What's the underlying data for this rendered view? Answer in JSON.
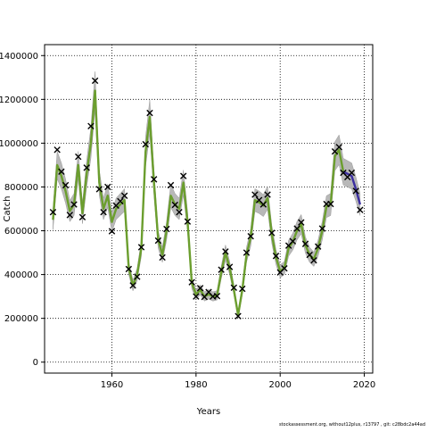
{
  "chart_data": {
    "type": "line",
    "title": "",
    "xlabel": "Years",
    "ylabel": "Catch",
    "xlim": [
      1944,
      2022
    ],
    "ylim": [
      -50000,
      1450000
    ],
    "xticks": [
      1960,
      1980,
      2000,
      2020
    ],
    "yticks": [
      0,
      200000,
      400000,
      600000,
      800000,
      1000000,
      1200000,
      1400000
    ],
    "ytick_labels": [
      "0",
      "200000",
      "400000",
      "600000",
      "800000",
      "1000000",
      "1200000",
      "1400000"
    ],
    "grid": true,
    "observed": {
      "marker": "x",
      "x": [
        1946,
        1947,
        1948,
        1949,
        1950,
        1951,
        1952,
        1953,
        1954,
        1955,
        1956,
        1957,
        1958,
        1959,
        1960,
        1961,
        1962,
        1963,
        1964,
        1965,
        1966,
        1967,
        1968,
        1969,
        1970,
        1971,
        1972,
        1973,
        1974,
        1975,
        1976,
        1977,
        1978,
        1979,
        1980,
        1981,
        1982,
        1983,
        1984,
        1985,
        1986,
        1987,
        1988,
        1989,
        1990,
        1991,
        1992,
        1993,
        1994,
        1995,
        1996,
        1997,
        1998,
        1999,
        2000,
        2001,
        2002,
        2003,
        2004,
        2005,
        2006,
        2007,
        2008,
        2009,
        2010,
        2011,
        2012,
        2013,
        2014,
        2015,
        2016,
        2017,
        2018,
        2019
      ],
      "y": [
        685000,
        970000,
        870000,
        808000,
        672000,
        720000,
        938000,
        662000,
        888000,
        1078000,
        1285000,
        790000,
        685000,
        800000,
        598000,
        715000,
        735000,
        760000,
        425000,
        350000,
        390000,
        525000,
        995000,
        1138000,
        835000,
        555000,
        478000,
        608000,
        808000,
        718000,
        685000,
        850000,
        642000,
        365000,
        300000,
        338000,
        298000,
        320000,
        300000,
        302000,
        422000,
        505000,
        435000,
        340000,
        210000,
        335000,
        500000,
        575000,
        765000,
        740000,
        720000,
        765000,
        590000,
        485000,
        410000,
        428000,
        532000,
        552000,
        610000,
        638000,
        540000,
        490000,
        465000,
        528000,
        610000,
        722000,
        722000,
        962000,
        982000,
        865000,
        845000,
        865000,
        782000,
        695000
      ]
    },
    "fit": {
      "color": "#6b9e2e",
      "x": [
        1946,
        1947,
        1948,
        1949,
        1950,
        1951,
        1952,
        1953,
        1954,
        1955,
        1956,
        1957,
        1958,
        1959,
        1960,
        1961,
        1962,
        1963,
        1964,
        1965,
        1966,
        1967,
        1968,
        1969,
        1970,
        1971,
        1972,
        1973,
        1974,
        1975,
        1976,
        1977,
        1978,
        1979,
        1980,
        1981,
        1982,
        1983,
        1984,
        1985,
        1986,
        1987,
        1988,
        1989,
        1990,
        1991,
        1992,
        1993,
        1994,
        1995,
        1996,
        1997,
        1998,
        1999,
        2000,
        2001,
        2002,
        2003,
        2004,
        2005,
        2006,
        2007,
        2008,
        2009,
        2010,
        2011,
        2012,
        2013,
        2014,
        2015
      ],
      "y": [
        650000,
        900000,
        850000,
        780000,
        690000,
        720000,
        900000,
        680000,
        860000,
        1000000,
        1240000,
        820000,
        700000,
        760000,
        640000,
        700000,
        720000,
        740000,
        430000,
        350000,
        400000,
        520000,
        960000,
        1120000,
        820000,
        560000,
        490000,
        600000,
        760000,
        720000,
        700000,
        820000,
        640000,
        360000,
        310000,
        330000,
        300000,
        310000,
        300000,
        305000,
        410000,
        500000,
        430000,
        330000,
        215000,
        330000,
        490000,
        570000,
        740000,
        730000,
        715000,
        750000,
        585000,
        480000,
        415000,
        430000,
        520000,
        550000,
        600000,
        630000,
        535000,
        490000,
        470000,
        520000,
        600000,
        710000,
        720000,
        940000,
        970000,
        870000
      ]
    },
    "forecast": {
      "color": "#3b2ea0",
      "x": [
        2015,
        2016,
        2017,
        2018,
        2019
      ],
      "y": [
        870000,
        860000,
        850000,
        790000,
        720000
      ]
    },
    "footer": "stockassessment.org, without12plus, r13797 , git: c28bdc2a44ad"
  }
}
